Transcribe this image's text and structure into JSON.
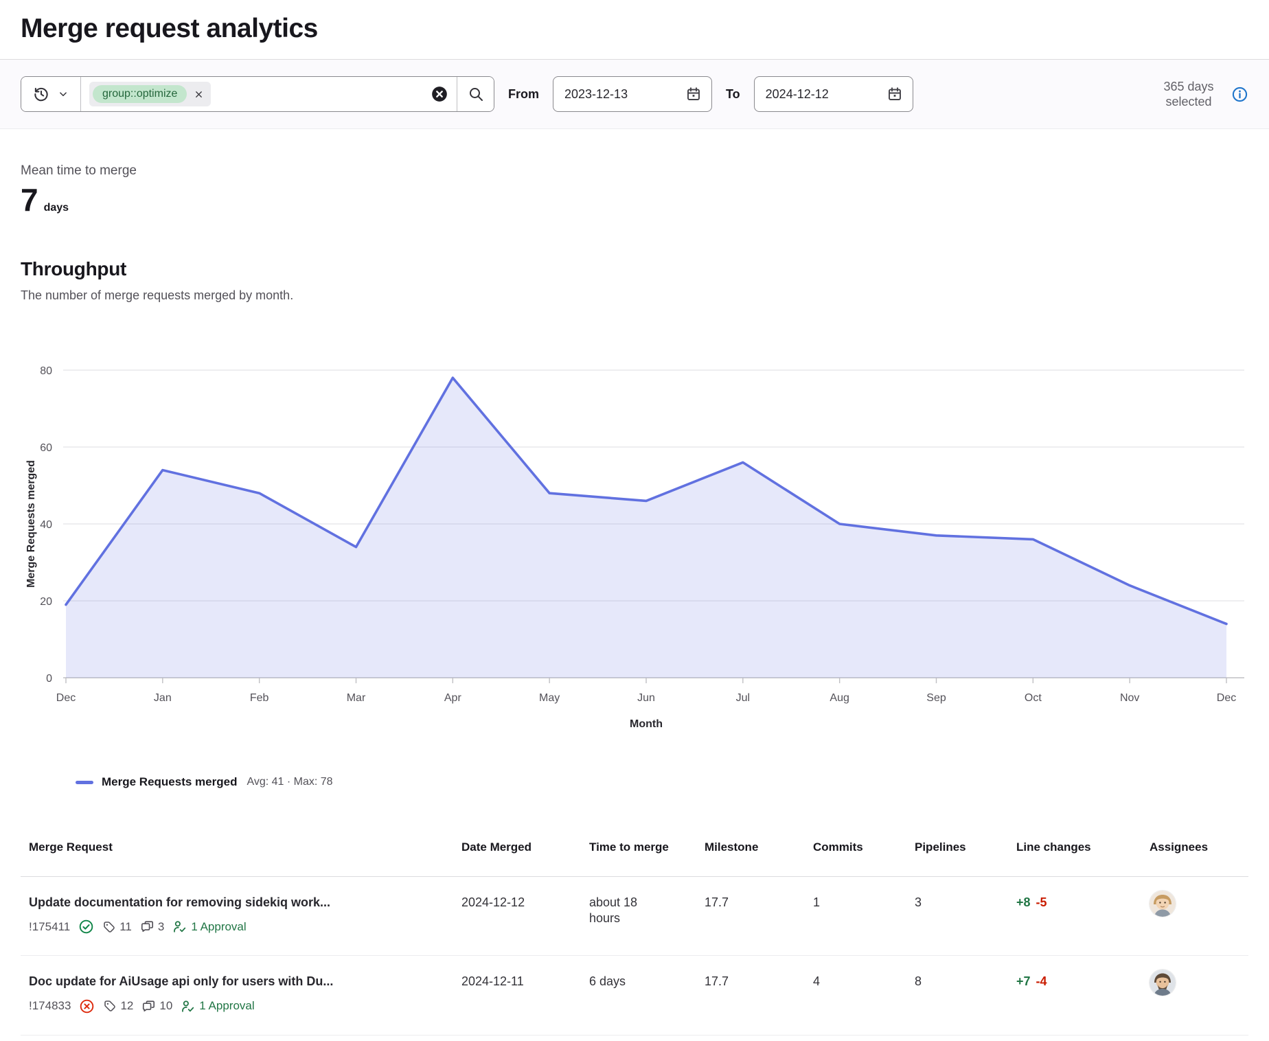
{
  "page": {
    "title": "Merge request analytics"
  },
  "filters": {
    "token": "group::optimize",
    "from_label": "From",
    "from_value": "2023-12-13",
    "to_label": "To",
    "to_value": "2024-12-12",
    "days_selected": "365 days selected"
  },
  "mean_time": {
    "label": "Mean time to merge",
    "value": "7",
    "unit": "days"
  },
  "throughput": {
    "title": "Throughput",
    "subtitle": "The number of merge requests merged by month."
  },
  "chart_data": {
    "type": "area",
    "x": [
      "Dec",
      "Jan",
      "Feb",
      "Mar",
      "Apr",
      "May",
      "Jun",
      "Jul",
      "Aug",
      "Sep",
      "Oct",
      "Nov",
      "Dec"
    ],
    "series": [
      {
        "name": "Merge Requests merged",
        "values": [
          19,
          54,
          48,
          34,
          78,
          48,
          46,
          56,
          40,
          37,
          36,
          24,
          14
        ]
      }
    ],
    "title": "",
    "xlabel": "Month",
    "ylabel": "Merge Requests merged",
    "ylim": [
      0,
      80
    ],
    "yticks": [
      0,
      20,
      40,
      60,
      80
    ],
    "grid": "horizontal-only",
    "legend_position": "bottom-left",
    "legend": {
      "label": "Merge Requests merged",
      "stats": "Avg: 41 · Max: 78"
    },
    "line_color": "#6171e0",
    "fill_color": "#6171e0",
    "fill_opacity": 0.16
  },
  "table": {
    "headers": [
      "Merge Request",
      "Date Merged",
      "Time to merge",
      "Milestone",
      "Commits",
      "Pipelines",
      "Line changes",
      "Assignees"
    ],
    "rows": [
      {
        "title": "Update documentation for removing sidekiq work...",
        "id": "!175411",
        "status": "success",
        "labels_count": "11",
        "comments_count": "3",
        "approvals": "1 Approval",
        "date_merged": "2024-12-12",
        "time_to_merge": "about 18 hours",
        "milestone": "17.7",
        "commits": "1",
        "pipelines": "3",
        "additions": "+8",
        "deletions": "-5",
        "avatar": "blond"
      },
      {
        "title": "Doc update for AiUsage api only for users with Du...",
        "id": "!174833",
        "status": "failed",
        "labels_count": "12",
        "comments_count": "10",
        "approvals": "1 Approval",
        "date_merged": "2024-12-11",
        "time_to_merge": "6 days",
        "milestone": "17.7",
        "commits": "4",
        "pipelines": "8",
        "additions": "+7",
        "deletions": "-4",
        "avatar": "beard"
      }
    ]
  }
}
